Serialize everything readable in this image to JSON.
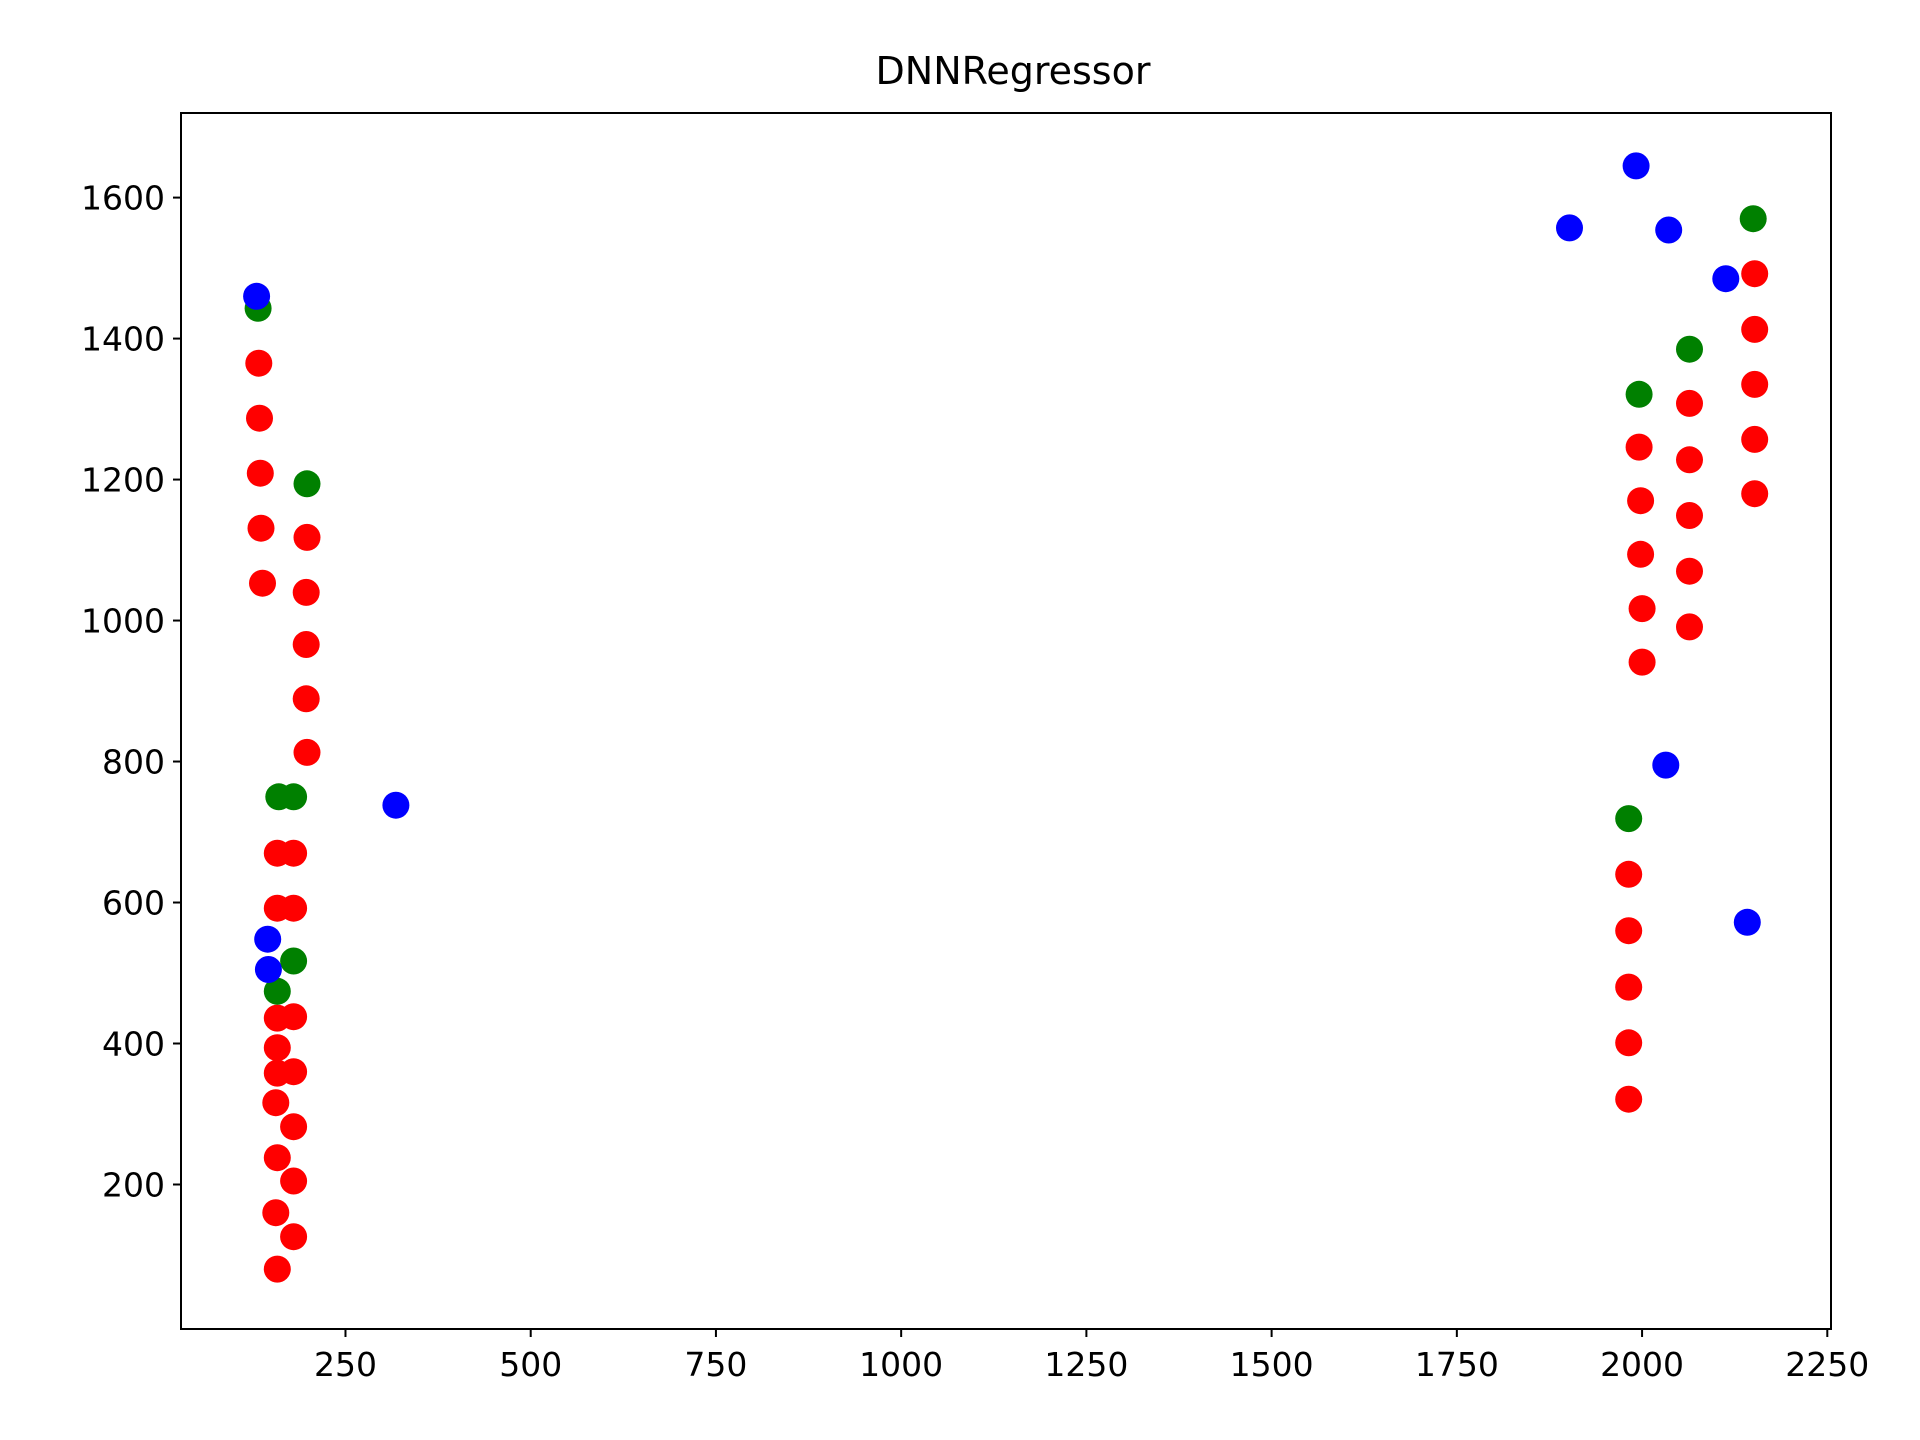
{
  "chart_data": {
    "type": "scatter",
    "title": "DNNRegressor",
    "xlabel": "",
    "ylabel": "",
    "xlim": [
      28,
      2255
    ],
    "ylim": [
      -5,
      1720
    ],
    "xticks": [
      250,
      500,
      750,
      1000,
      1250,
      1500,
      1750,
      2000,
      2250
    ],
    "xtick_labels": [
      "250",
      "500",
      "750",
      "1000",
      "1250",
      "1500",
      "1750",
      "2000",
      "2250"
    ],
    "yticks": [
      200,
      400,
      600,
      800,
      1000,
      1200,
      1400,
      1600
    ],
    "ytick_labels": [
      "200",
      "400",
      "600",
      "800",
      "1000",
      "1200",
      "1400",
      "1600"
    ],
    "grid": false,
    "legend": "none",
    "series": [
      {
        "color": "#ff0000",
        "points": [
          [
            133,
            1365
          ],
          [
            134,
            1287
          ],
          [
            135,
            1209
          ],
          [
            136,
            1131
          ],
          [
            138,
            1053
          ],
          [
            158,
            670
          ],
          [
            158,
            592
          ],
          [
            158,
            436
          ],
          [
            158,
            394
          ],
          [
            158,
            358
          ],
          [
            156,
            316
          ],
          [
            158,
            238
          ],
          [
            156,
            160
          ],
          [
            158,
            80
          ],
          [
            180,
            670
          ],
          [
            180,
            592
          ],
          [
            180,
            438
          ],
          [
            180,
            360
          ],
          [
            180,
            282
          ],
          [
            180,
            205
          ],
          [
            180,
            126
          ],
          [
            198,
            1118
          ],
          [
            197,
            1040
          ],
          [
            197,
            966
          ],
          [
            197,
            889
          ],
          [
            198,
            813
          ],
          [
            1982,
            640
          ],
          [
            1982,
            560
          ],
          [
            1982,
            480
          ],
          [
            1982,
            401
          ],
          [
            1982,
            321
          ],
          [
            1996,
            1246
          ],
          [
            1998,
            1170
          ],
          [
            1998,
            1094
          ],
          [
            2000,
            1017
          ],
          [
            2000,
            941
          ],
          [
            2064,
            1308
          ],
          [
            2064,
            1228
          ],
          [
            2064,
            1149
          ],
          [
            2064,
            1070
          ],
          [
            2064,
            991
          ],
          [
            2152,
            1492
          ],
          [
            2152,
            1413
          ],
          [
            2152,
            1335
          ],
          [
            2152,
            1257
          ],
          [
            2152,
            1180
          ]
        ]
      },
      {
        "color": "#008000",
        "points": [
          [
            132,
            1443
          ],
          [
            198,
            1194
          ],
          [
            160,
            750
          ],
          [
            180,
            750
          ],
          [
            180,
            517
          ],
          [
            158,
            474
          ],
          [
            2150,
            1570
          ],
          [
            2064,
            1385
          ],
          [
            1996,
            1321
          ],
          [
            1982,
            719
          ]
        ]
      },
      {
        "color": "#0000ff",
        "points": [
          [
            130,
            1460
          ],
          [
            318,
            738
          ],
          [
            145,
            548
          ],
          [
            146,
            505
          ],
          [
            1992,
            1645
          ],
          [
            1902,
            1557
          ],
          [
            2036,
            1554
          ],
          [
            2113,
            1485
          ],
          [
            2032,
            795
          ],
          [
            2142,
            572
          ]
        ]
      }
    ]
  }
}
